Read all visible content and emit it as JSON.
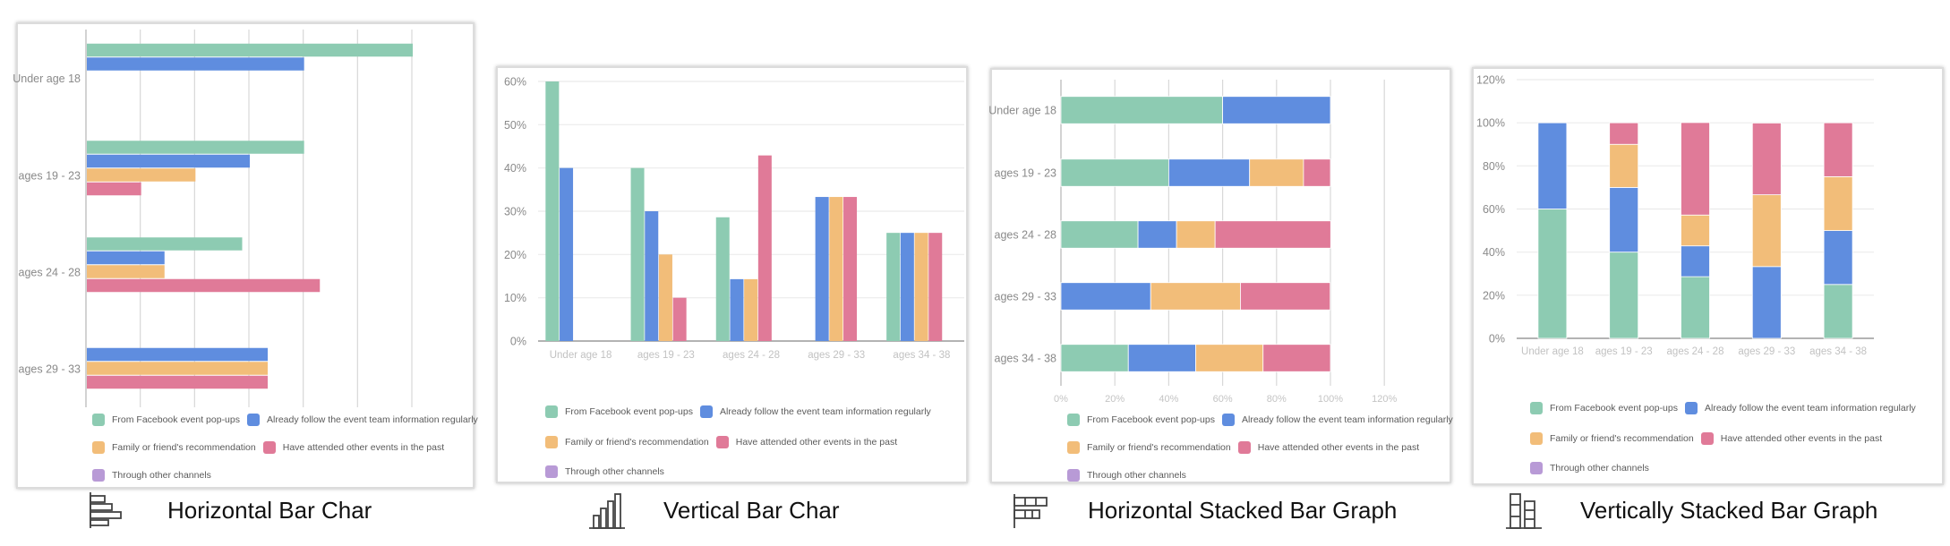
{
  "colors": {
    "series": [
      "#8dcbb2",
      "#5f8ddf",
      "#f2bd79",
      "#e07a98",
      "#b89ad6"
    ],
    "grid": "#d6d6d6",
    "axis_text": "#8a8a8a"
  },
  "captions": [
    {
      "label": "Horizontal Bar Char",
      "icon": "horizontal-bar-chart-icon"
    },
    {
      "label": "Vertical Bar Char",
      "icon": "vertical-bar-chart-icon"
    },
    {
      "label": "Horizontal Stacked Bar Graph",
      "icon": "horizontal-stacked-bar-icon"
    },
    {
      "label": "Vertically Stacked Bar Graph",
      "icon": "vertical-stacked-bar-icon"
    }
  ],
  "chart_data": [
    {
      "type": "bar",
      "orientation": "horizontal",
      "stacked": false,
      "categories": [
        "Under age 18",
        "ages 19 - 23",
        "ages 24 - 28",
        "ages 29 - 33"
      ],
      "series": [
        {
          "name": "From Facebook event pop-ups",
          "values": [
            60,
            40,
            28.6,
            0
          ]
        },
        {
          "name": "Already follow the event team information regularly",
          "values": [
            40,
            30,
            14.3,
            33.3
          ]
        },
        {
          "name": "Family or friend's recommendation",
          "values": [
            0,
            20,
            14.3,
            33.3
          ]
        },
        {
          "name": "Have attended other events in the past",
          "values": [
            0,
            10,
            42.9,
            33.3
          ]
        },
        {
          "name": "Through other channels",
          "values": [
            0,
            0,
            0,
            0
          ]
        }
      ],
      "value_axis": {
        "range": [
          0,
          60
        ],
        "gridlines": [
          0,
          10,
          20,
          30,
          40,
          50,
          60
        ],
        "tick_labels": []
      },
      "grid": true,
      "legend": "bottom"
    },
    {
      "type": "bar",
      "orientation": "vertical",
      "stacked": false,
      "categories": [
        "Under age 18",
        "ages 19 - 23",
        "ages 24 - 28",
        "ages 29 - 33",
        "ages 34 - 38"
      ],
      "series": [
        {
          "name": "From Facebook event pop-ups",
          "values": [
            60,
            40,
            28.6,
            0,
            25
          ]
        },
        {
          "name": "Already follow the event team information regularly",
          "values": [
            40,
            30,
            14.3,
            33.3,
            25
          ]
        },
        {
          "name": "Family or friend's recommendation",
          "values": [
            0,
            20,
            14.3,
            33.3,
            25
          ]
        },
        {
          "name": "Have attended other events in the past",
          "values": [
            0,
            10,
            42.9,
            33.3,
            25
          ]
        },
        {
          "name": "Through other channels",
          "values": [
            0,
            0,
            0,
            0,
            0
          ]
        }
      ],
      "value_axis": {
        "range": [
          0,
          60
        ],
        "gridlines": [
          0,
          10,
          20,
          30,
          40,
          50,
          60
        ],
        "tick_labels": [
          "0%",
          "10%",
          "20%",
          "30%",
          "40%",
          "50%",
          "60%"
        ]
      },
      "grid": true,
      "legend": "bottom"
    },
    {
      "type": "bar",
      "orientation": "horizontal",
      "stacked": true,
      "categories": [
        "Under age 18",
        "ages 19 - 23",
        "ages 24 - 28",
        "ages 29 - 33",
        "ages 34 - 38"
      ],
      "series": [
        {
          "name": "From Facebook event pop-ups",
          "values": [
            60,
            40,
            28.6,
            0,
            25
          ]
        },
        {
          "name": "Already follow the event team information regularly",
          "values": [
            40,
            30,
            14.3,
            33.3,
            25
          ]
        },
        {
          "name": "Family or friend's recommendation",
          "values": [
            0,
            20,
            14.3,
            33.3,
            25
          ]
        },
        {
          "name": "Have attended other events in the past",
          "values": [
            0,
            10,
            42.9,
            33.3,
            25
          ]
        },
        {
          "name": "Through other channels",
          "values": [
            0,
            0,
            0,
            0,
            0
          ]
        }
      ],
      "value_axis": {
        "range": [
          0,
          120
        ],
        "gridlines": [
          0,
          20,
          40,
          60,
          80,
          100,
          120
        ],
        "tick_labels": [
          "0%",
          "20%",
          "40%",
          "60%",
          "80%",
          "100%",
          "120%"
        ]
      },
      "grid": true,
      "legend": "bottom"
    },
    {
      "type": "bar",
      "orientation": "vertical",
      "stacked": true,
      "categories": [
        "Under age 18",
        "ages 19 - 23",
        "ages 24 - 28",
        "ages 29 - 33",
        "ages 34 - 38"
      ],
      "series": [
        {
          "name": "From Facebook event pop-ups",
          "values": [
            60,
            40,
            28.6,
            0,
            25
          ]
        },
        {
          "name": "Already follow the event team information regularly",
          "values": [
            40,
            30,
            14.3,
            33.3,
            25
          ]
        },
        {
          "name": "Family or friend's recommendation",
          "values": [
            0,
            20,
            14.3,
            33.3,
            25
          ]
        },
        {
          "name": "Have attended other events in the past",
          "values": [
            0,
            10,
            42.9,
            33.3,
            25
          ]
        },
        {
          "name": "Through other channels",
          "values": [
            0,
            0,
            0,
            0,
            0
          ]
        }
      ],
      "value_axis": {
        "range": [
          0,
          120
        ],
        "gridlines": [
          0,
          20,
          40,
          60,
          80,
          100,
          120
        ],
        "tick_labels": [
          "0%",
          "20%",
          "40%",
          "60%",
          "80%",
          "100%",
          "120%"
        ]
      },
      "grid": true,
      "legend": "bottom"
    }
  ]
}
